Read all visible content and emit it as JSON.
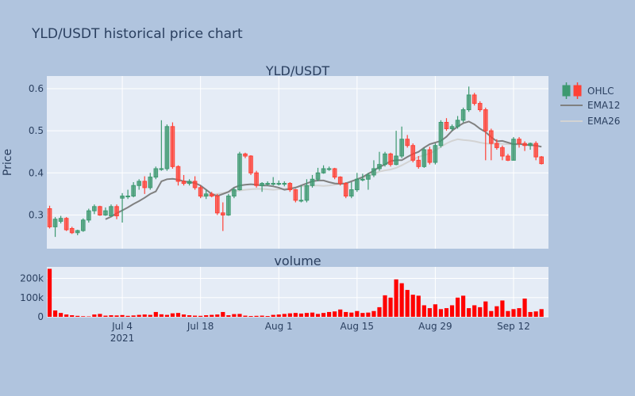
{
  "title": "YLD/USDT historical price chart",
  "chart_data": [
    {
      "type": "candlestick",
      "title": "YLD/USDT",
      "ylabel": "Price",
      "ylim": [
        0.22,
        0.63
      ],
      "y_ticks": [
        0.3,
        0.4,
        0.5,
        0.6
      ],
      "y_tick_labels": [
        "0.3",
        "0.4",
        "0.5",
        "0.6"
      ],
      "x_tick_labels": [
        "Jul 4\n2021",
        "Jul 18",
        "Aug 1",
        "Aug 15",
        "Aug 29",
        "Sep 12"
      ],
      "legend": [
        "OHLC",
        "EMA12",
        "EMA26"
      ],
      "legend_position": "top-right",
      "grid": true,
      "colors": {
        "increasing": "#3d9970",
        "decreasing": "#ff4136",
        "ema12": "#808080",
        "ema26": "#d3d3d3"
      },
      "series": [
        {
          "name": "OHLC",
          "x": [
            "2021-06-21",
            "2021-06-22",
            "2021-06-23",
            "2021-06-24",
            "2021-06-25",
            "2021-06-26",
            "2021-06-27",
            "2021-06-28",
            "2021-06-29",
            "2021-06-30",
            "2021-07-01",
            "2021-07-02",
            "2021-07-03",
            "2021-07-04",
            "2021-07-05",
            "2021-07-06",
            "2021-07-07",
            "2021-07-08",
            "2021-07-09",
            "2021-07-10",
            "2021-07-11",
            "2021-07-12",
            "2021-07-13",
            "2021-07-14",
            "2021-07-15",
            "2021-07-16",
            "2021-07-17",
            "2021-07-18",
            "2021-07-19",
            "2021-07-20",
            "2021-07-21",
            "2021-07-22",
            "2021-07-23",
            "2021-07-24",
            "2021-07-25",
            "2021-07-26",
            "2021-07-27",
            "2021-07-28",
            "2021-07-29",
            "2021-07-30",
            "2021-07-31",
            "2021-08-01",
            "2021-08-02",
            "2021-08-03",
            "2021-08-04",
            "2021-08-05",
            "2021-08-06",
            "2021-08-07",
            "2021-08-08",
            "2021-08-09",
            "2021-08-10",
            "2021-08-11",
            "2021-08-12",
            "2021-08-13",
            "2021-08-14",
            "2021-08-15",
            "2021-08-16",
            "2021-08-17",
            "2021-08-18",
            "2021-08-19",
            "2021-08-20",
            "2021-08-21",
            "2021-08-22",
            "2021-08-23",
            "2021-08-24",
            "2021-08-25",
            "2021-08-26",
            "2021-08-27",
            "2021-08-28",
            "2021-08-29",
            "2021-08-30",
            "2021-08-31",
            "2021-09-01",
            "2021-09-02",
            "2021-09-03",
            "2021-09-04",
            "2021-09-05",
            "2021-09-06",
            "2021-09-07",
            "2021-09-08",
            "2021-09-09",
            "2021-09-10",
            "2021-09-11",
            "2021-09-12",
            "2021-09-13",
            "2021-09-14",
            "2021-09-15",
            "2021-09-16",
            "2021-09-17"
          ],
          "open": [
            0.315,
            0.272,
            0.285,
            0.292,
            0.268,
            0.258,
            0.263,
            0.288,
            0.31,
            0.32,
            0.3,
            0.298,
            0.32,
            0.34,
            0.345,
            0.345,
            0.37,
            0.38,
            0.365,
            0.39,
            0.41,
            0.41,
            0.51,
            0.415,
            0.38,
            0.375,
            0.38,
            0.365,
            0.345,
            0.35,
            0.345,
            0.305,
            0.3,
            0.345,
            0.36,
            0.445,
            0.44,
            0.4,
            0.37,
            0.375,
            0.375,
            0.375,
            0.375,
            0.375,
            0.36,
            0.335,
            0.335,
            0.37,
            0.385,
            0.4,
            0.41,
            0.41,
            0.39,
            0.375,
            0.345,
            0.36,
            0.385,
            0.385,
            0.395,
            0.41,
            0.42,
            0.445,
            0.42,
            0.44,
            0.48,
            0.465,
            0.43,
            0.415,
            0.455,
            0.425,
            0.465,
            0.52,
            0.505,
            0.51,
            0.525,
            0.55,
            0.585,
            0.565,
            0.55,
            0.5,
            0.47,
            0.46,
            0.44,
            0.43,
            0.48,
            0.47,
            0.465,
            0.47,
            0.438
          ],
          "close": [
            0.272,
            0.29,
            0.292,
            0.265,
            0.258,
            0.263,
            0.288,
            0.31,
            0.32,
            0.3,
            0.31,
            0.32,
            0.298,
            0.345,
            0.345,
            0.37,
            0.38,
            0.365,
            0.39,
            0.41,
            0.41,
            0.51,
            0.415,
            0.38,
            0.375,
            0.38,
            0.365,
            0.345,
            0.35,
            0.345,
            0.305,
            0.3,
            0.345,
            0.36,
            0.445,
            0.44,
            0.4,
            0.37,
            0.375,
            0.375,
            0.375,
            0.375,
            0.375,
            0.36,
            0.335,
            0.335,
            0.37,
            0.385,
            0.4,
            0.41,
            0.41,
            0.39,
            0.375,
            0.345,
            0.36,
            0.385,
            0.385,
            0.395,
            0.41,
            0.42,
            0.445,
            0.42,
            0.44,
            0.48,
            0.465,
            0.43,
            0.415,
            0.455,
            0.425,
            0.465,
            0.52,
            0.505,
            0.51,
            0.525,
            0.55,
            0.585,
            0.565,
            0.55,
            0.5,
            0.47,
            0.46,
            0.44,
            0.43,
            0.48,
            0.47,
            0.465,
            0.47,
            0.438,
            0.422
          ],
          "high": [
            0.322,
            0.295,
            0.298,
            0.295,
            0.272,
            0.265,
            0.292,
            0.315,
            0.325,
            0.322,
            0.318,
            0.325,
            0.325,
            0.352,
            0.36,
            0.378,
            0.385,
            0.392,
            0.4,
            0.415,
            0.525,
            0.515,
            0.52,
            0.418,
            0.395,
            0.385,
            0.392,
            0.37,
            0.36,
            0.355,
            0.35,
            0.33,
            0.35,
            0.365,
            0.45,
            0.448,
            0.442,
            0.405,
            0.378,
            0.38,
            0.39,
            0.382,
            0.38,
            0.378,
            0.362,
            0.37,
            0.385,
            0.395,
            0.412,
            0.418,
            0.415,
            0.412,
            0.392,
            0.378,
            0.378,
            0.4,
            0.398,
            0.4,
            0.43,
            0.45,
            0.45,
            0.448,
            0.5,
            0.51,
            0.49,
            0.47,
            0.44,
            0.46,
            0.462,
            0.47,
            0.525,
            0.53,
            0.515,
            0.535,
            0.555,
            0.605,
            0.59,
            0.57,
            0.555,
            0.505,
            0.48,
            0.465,
            0.445,
            0.485,
            0.485,
            0.475,
            0.472,
            0.475,
            0.44
          ],
          "low": [
            0.268,
            0.248,
            0.28,
            0.262,
            0.255,
            0.252,
            0.26,
            0.282,
            0.302,
            0.298,
            0.298,
            0.296,
            0.29,
            0.282,
            0.338,
            0.342,
            0.36,
            0.35,
            0.36,
            0.385,
            0.405,
            0.405,
            0.41,
            0.37,
            0.37,
            0.37,
            0.36,
            0.34,
            0.338,
            0.342,
            0.3,
            0.262,
            0.298,
            0.34,
            0.358,
            0.435,
            0.395,
            0.365,
            0.355,
            0.37,
            0.37,
            0.37,
            0.368,
            0.355,
            0.33,
            0.33,
            0.33,
            0.365,
            0.38,
            0.398,
            0.405,
            0.385,
            0.37,
            0.34,
            0.34,
            0.355,
            0.38,
            0.36,
            0.39,
            0.405,
            0.415,
            0.415,
            0.418,
            0.435,
            0.46,
            0.425,
            0.41,
            0.412,
            0.42,
            0.42,
            0.46,
            0.5,
            0.5,
            0.505,
            0.52,
            0.545,
            0.56,
            0.545,
            0.43,
            0.43,
            0.455,
            0.43,
            0.428,
            0.43,
            0.46,
            0.452,
            0.455,
            0.43,
            0.42
          ]
        },
        {
          "name": "EMA12",
          "x_start": "2021-07-01",
          "values": [
            0.29,
            0.296,
            0.304,
            0.311,
            0.318,
            0.326,
            0.333,
            0.341,
            0.35,
            0.356,
            0.38,
            0.385,
            0.386,
            0.384,
            0.38,
            0.378,
            0.376,
            0.37,
            0.36,
            0.35,
            0.345,
            0.35,
            0.355,
            0.365,
            0.37,
            0.372,
            0.373,
            0.372,
            0.37,
            0.37,
            0.368,
            0.365,
            0.36,
            0.362,
            0.365,
            0.37,
            0.375,
            0.38,
            0.382,
            0.382,
            0.378,
            0.375,
            0.374,
            0.375,
            0.38,
            0.385,
            0.39,
            0.398,
            0.405,
            0.414,
            0.42,
            0.428,
            0.43,
            0.43,
            0.438,
            0.445,
            0.45,
            0.46,
            0.468,
            0.472,
            0.476,
            0.486,
            0.5,
            0.51,
            0.518,
            0.522,
            0.515,
            0.505,
            0.497,
            0.485,
            0.475,
            0.476,
            0.472,
            0.468,
            0.469,
            0.467,
            0.466,
            0.465,
            0.462
          ]
        },
        {
          "name": "EMA26",
          "x_start": "2021-07-18",
          "values": [
            0.343,
            0.345,
            0.348,
            0.35,
            0.352,
            0.355,
            0.357,
            0.358,
            0.36,
            0.361,
            0.362,
            0.362,
            0.361,
            0.36,
            0.361,
            0.362,
            0.364,
            0.366,
            0.368,
            0.369,
            0.37,
            0.37,
            0.369,
            0.37,
            0.372,
            0.374,
            0.376,
            0.38,
            0.384,
            0.388,
            0.393,
            0.398,
            0.403,
            0.406,
            0.408,
            0.412,
            0.418,
            0.425,
            0.432,
            0.438,
            0.442,
            0.446,
            0.453,
            0.462,
            0.47,
            0.476,
            0.48,
            0.478,
            0.477,
            0.475,
            0.472,
            0.47,
            0.469,
            0.47,
            0.469,
            0.468,
            0.468,
            0.467
          ]
        }
      ]
    },
    {
      "type": "bar",
      "title": "volume",
      "ylim": [
        0,
        260000
      ],
      "y_ticks": [
        0,
        100000,
        200000
      ],
      "y_tick_labels": [
        "0",
        "100k",
        "200k"
      ],
      "color": "#ff0000",
      "x_start": "2021-06-21",
      "values": [
        250000,
        33000,
        20000,
        12000,
        8000,
        5000,
        3000,
        2000,
        12000,
        15000,
        6000,
        8000,
        7000,
        9000,
        5000,
        7000,
        10000,
        12000,
        10000,
        25000,
        13000,
        10000,
        18000,
        20000,
        12000,
        8000,
        6000,
        5000,
        8000,
        10000,
        12000,
        25000,
        8000,
        14000,
        15000,
        6000,
        4000,
        5000,
        6000,
        4000,
        10000,
        12000,
        15000,
        18000,
        20000,
        17000,
        20000,
        22000,
        15000,
        20000,
        25000,
        28000,
        38000,
        25000,
        22000,
        30000,
        20000,
        22000,
        30000,
        50000,
        112000,
        100000,
        195000,
        175000,
        140000,
        115000,
        110000,
        60000,
        45000,
        65000,
        40000,
        45000,
        60000,
        100000,
        110000,
        45000,
        60000,
        50000,
        80000,
        30000,
        55000,
        85000,
        30000,
        40000,
        45000,
        95000,
        25000,
        28000,
        40000
      ]
    }
  ]
}
